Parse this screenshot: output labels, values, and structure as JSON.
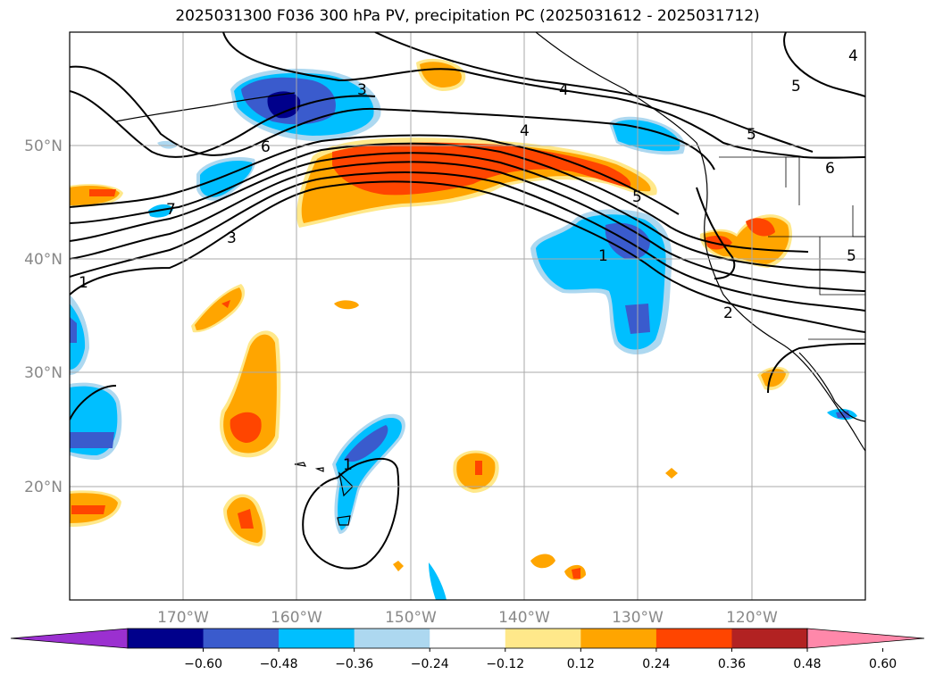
{
  "title": "2025031300 F036 300 hPa PV, precipitation PC (2025031612 - 2025031712)",
  "map": {
    "lon_range": [
      -180,
      -110
    ],
    "lat_range": [
      10,
      60
    ],
    "lat_ticks": [
      {
        "value": 20,
        "label": "20°N"
      },
      {
        "value": 30,
        "label": "30°N"
      },
      {
        "value": 40,
        "label": "40°N"
      },
      {
        "value": 50,
        "label": "50°N"
      }
    ],
    "lon_ticks": [
      {
        "value": -170,
        "label": "170°W"
      },
      {
        "value": -160,
        "label": "160°W"
      },
      {
        "value": -150,
        "label": "150°W"
      },
      {
        "value": -140,
        "label": "140°W"
      },
      {
        "value": -130,
        "label": "130°W"
      },
      {
        "value": -120,
        "label": "120°W"
      }
    ],
    "gridlines": true,
    "contour_labels": [
      "3",
      "4",
      "4",
      "6",
      "5",
      "6",
      "5",
      "7",
      "3",
      "5",
      "1",
      "1",
      "2",
      "4",
      "5",
      "1"
    ]
  },
  "colorbar": {
    "labels": [
      "−0.60",
      "−0.48",
      "−0.36",
      "−0.24",
      "−0.12",
      "0.12",
      "0.24",
      "0.36",
      "0.48",
      "0.60"
    ],
    "colors": [
      "#9b30d0",
      "#00008b",
      "#3a5bcd",
      "#00bfff",
      "#add8f0",
      "#ffffff",
      "#ffe88a",
      "#ffa500",
      "#ff4500",
      "#b22222",
      "#ff88aa"
    ]
  },
  "shading_colors": {
    "neg_light": "#add8f0",
    "neg_mid": "#00bfff",
    "neg_strong": "#3a5bcd",
    "neg_max": "#00008b",
    "pos_light": "#ffe88a",
    "pos_mid": "#ffa500",
    "pos_strong": "#ff4500"
  }
}
